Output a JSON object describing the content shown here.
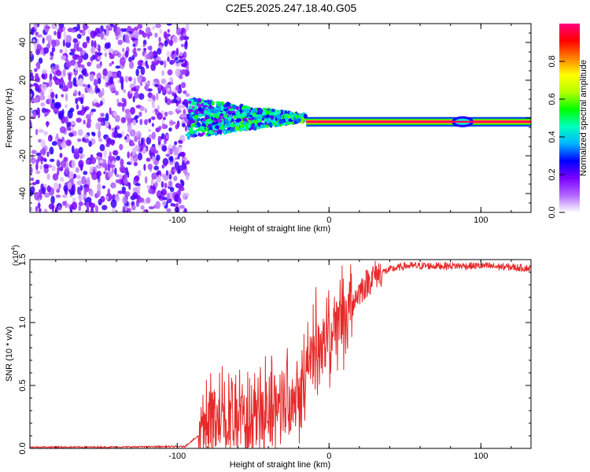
{
  "title": "C2E5.2025.247.18.40.G05",
  "chart_data": [
    {
      "type": "heatmap",
      "name": "spectrogram",
      "xlabel": "Height of straight line (km)",
      "ylabel": "Frequency (Hz)",
      "xlim": [
        -197,
        133
      ],
      "ylim": [
        -50,
        50
      ],
      "xticks": [
        -100,
        0,
        100
      ],
      "yticks": [
        -40,
        -20,
        0,
        20,
        40
      ],
      "colorbar": {
        "label": "Normalized spectral amplitude",
        "range": [
          0,
          1
        ],
        "ticks": [
          "0.0",
          "0.2",
          "0.4",
          "0.6",
          "0.8"
        ],
        "colors": [
          "#ffffff",
          "#b266ff",
          "#7b00ff",
          "#0000ff",
          "#00b4ff",
          "#00ffc0",
          "#00ff00",
          "#b4ff00",
          "#ffff00",
          "#ff8000",
          "#ff0000",
          "#ff0080"
        ]
      },
      "regions": [
        {
          "x": [
            -197,
            -93
          ],
          "desc": "broadband noise",
          "amplitude": 0.15
        },
        {
          "x": [
            -93,
            -15
          ],
          "desc": "narrowing signal near 0 Hz",
          "amplitude": 0.35
        },
        {
          "x": [
            -15,
            133
          ],
          "desc": "narrow line at about -2 Hz",
          "amplitude": 0.98
        }
      ],
      "line_freq": -2
    },
    {
      "type": "line",
      "name": "snr",
      "xlabel": "Height of straight line (km)",
      "ylabel": "SNR (10 * v/v)",
      "y_multiplier": "(x10",
      "y_exponent": "4",
      "xlim": [
        -197,
        133
      ],
      "ylim": [
        0,
        1.5
      ],
      "xticks": [
        -100,
        0,
        100
      ],
      "yticks": [
        "0.0",
        "0.5",
        "1.0",
        "1.5"
      ],
      "color": "#e62a2a",
      "anchor_x": [
        -197,
        -150,
        -95,
        -86,
        -80,
        -70,
        -60,
        -50,
        -40,
        -30,
        -20,
        -10,
        0,
        10,
        20,
        30,
        40,
        50,
        60,
        80,
        100,
        120,
        133
      ],
      "anchor_y": [
        0.01,
        0.01,
        0.015,
        0.1,
        0.25,
        0.28,
        0.22,
        0.25,
        0.3,
        0.4,
        0.48,
        0.75,
        0.9,
        1.05,
        1.25,
        1.38,
        1.42,
        1.45,
        1.45,
        1.45,
        1.45,
        1.44,
        1.43
      ]
    }
  ]
}
